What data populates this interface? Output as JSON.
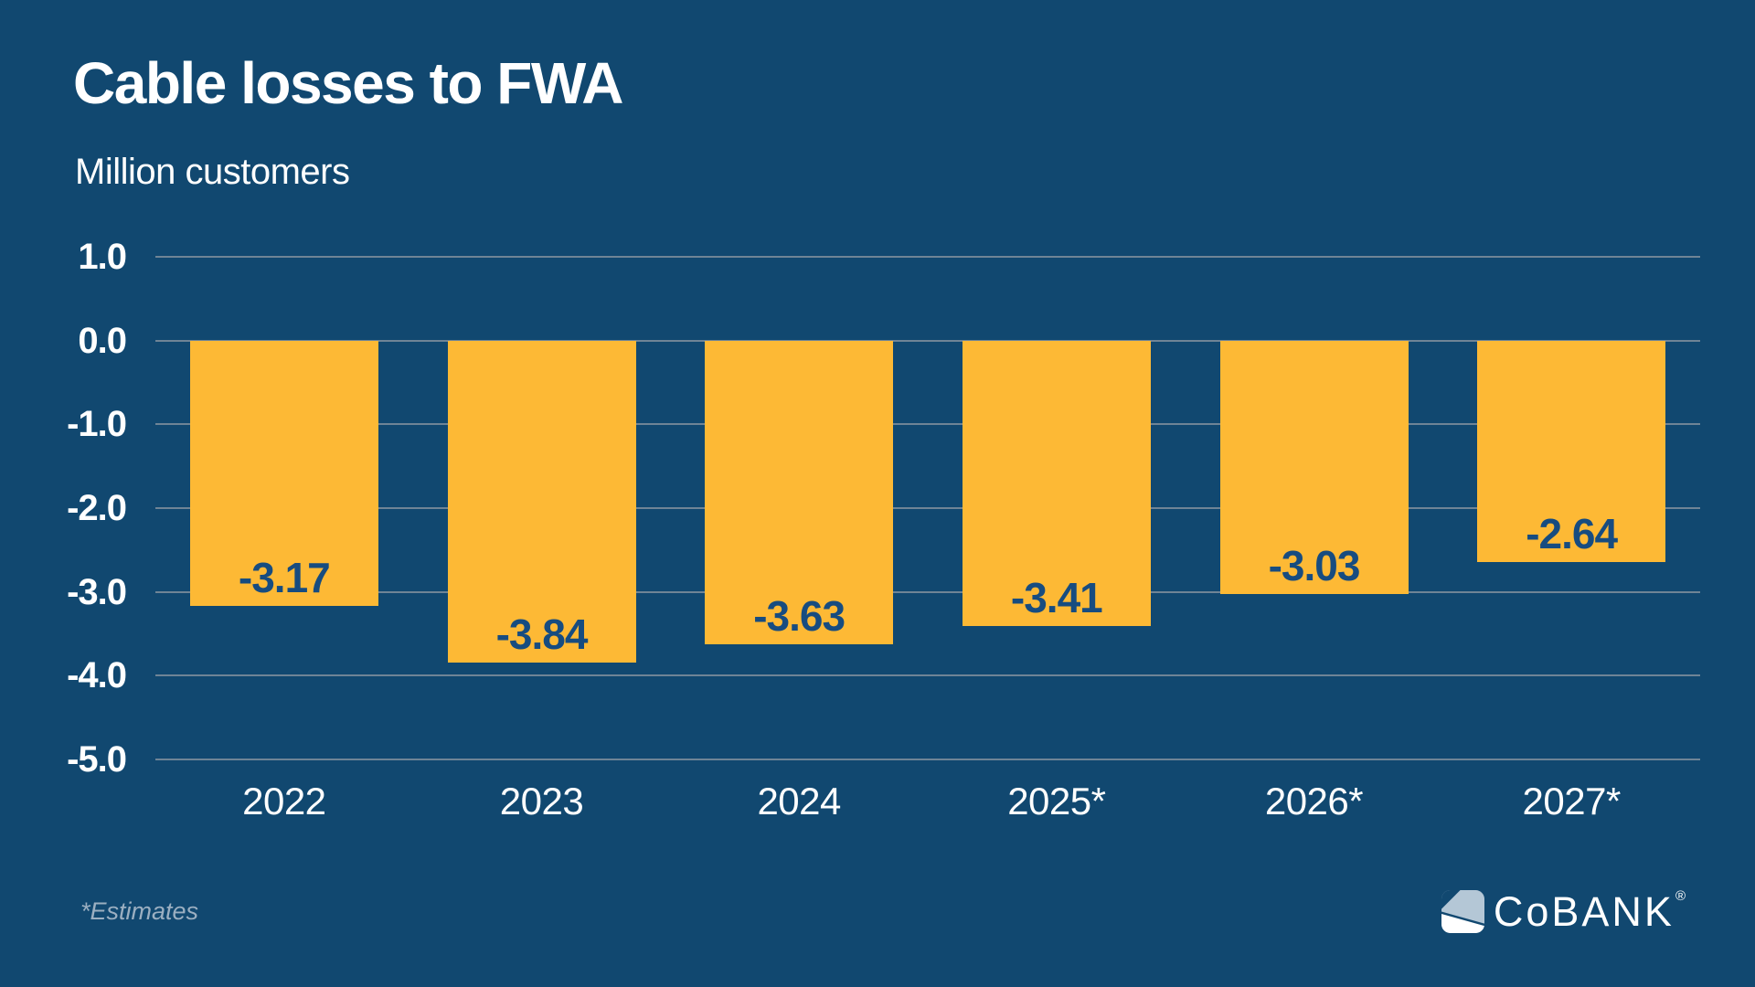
{
  "header": {
    "title": "Cable losses to FWA",
    "subtitle": "Million customers"
  },
  "chart_data": {
    "type": "bar",
    "title": "Cable losses to FWA",
    "ylabel": "Million customers",
    "xlabel": "",
    "categories": [
      "2022",
      "2023",
      "2024",
      "2025*",
      "2026*",
      "2027*"
    ],
    "values": [
      -3.17,
      -3.84,
      -3.63,
      -3.41,
      -3.03,
      -2.64
    ],
    "value_labels": [
      "-3.17",
      "-3.84",
      "-3.63",
      "-3.41",
      "-3.03",
      "-2.64"
    ],
    "ylim": [
      -5.0,
      1.0
    ],
    "yticks": [
      1.0,
      0.0,
      -1.0,
      -2.0,
      -3.0,
      -4.0,
      -5.0
    ],
    "ytick_labels": [
      "1.0",
      "0.0",
      "-1.0",
      "-2.0",
      "-3.0",
      "-4.0",
      "-5.0"
    ],
    "grid": true,
    "legend_position": "none",
    "colors": {
      "background": "#114870",
      "bar": "#FDB935",
      "bar_value_text": "#174C80",
      "axis_text": "#FFFFFF",
      "gridline": "#6F8496",
      "footnote_text": "#9BAFC1",
      "logo_light": "#B4C7D6",
      "logo_white": "#FFFFFF"
    }
  },
  "footer": {
    "note": "*Estimates",
    "logo": {
      "part_c": "C",
      "part_o": "o",
      "part_rest": "BANK",
      "registered_mark": "®"
    }
  }
}
